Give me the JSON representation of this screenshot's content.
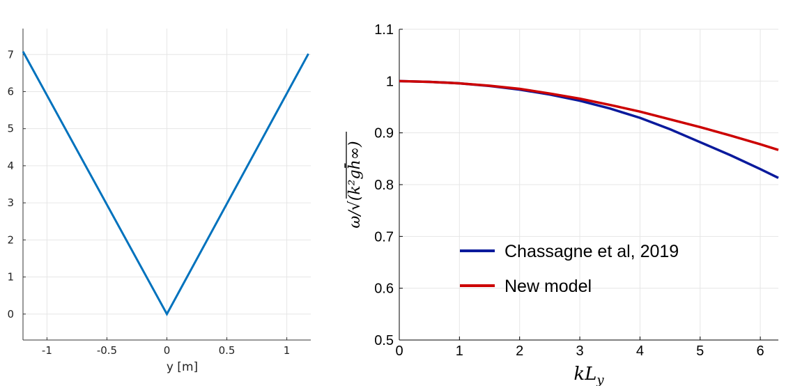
{
  "chart_data": [
    {
      "type": "line",
      "title": "",
      "xlabel": "y [m]",
      "ylabel": "",
      "xlim": [
        -1.2,
        1.2
      ],
      "ylim": [
        -0.7,
        7.7
      ],
      "xticks": [
        "-1",
        "-0.5",
        "0",
        "0.5",
        "1"
      ],
      "yticks": [
        "0",
        "1",
        "2",
        "3",
        "4",
        "5",
        "6",
        "7"
      ],
      "grid": true,
      "series": [
        {
          "x": [
            -1.2,
            0,
            1.18
          ],
          "y": [
            7.08,
            0,
            7.02
          ],
          "color": "#0072bd"
        }
      ]
    },
    {
      "type": "line",
      "title": "",
      "xlabel": "kL_y",
      "ylabel": "ω/√(k²gh̄∞)",
      "xlim": [
        0,
        6.3
      ],
      "ylim": [
        0.5,
        1.1
      ],
      "xticks": [
        "0",
        "1",
        "2",
        "3",
        "4",
        "5",
        "6"
      ],
      "yticks": [
        "0.5",
        "0.6",
        "0.7",
        "0.8",
        "0.9",
        "1",
        "1.1"
      ],
      "grid": true,
      "legend_position": "lower-left",
      "series": [
        {
          "name": "Chassagne et al, 2019",
          "color": "#0a1a9c",
          "x": [
            0,
            0.5,
            1,
            1.5,
            2,
            2.5,
            3,
            3.5,
            4,
            4.5,
            5,
            5.5,
            6,
            6.3
          ],
          "y": [
            1.0,
            0.9985,
            0.9955,
            0.9905,
            0.9835,
            0.974,
            0.962,
            0.947,
            0.929,
            0.907,
            0.882,
            0.857,
            0.83,
            0.813
          ]
        },
        {
          "name": "New model",
          "color": "#cc0000",
          "x": [
            0,
            0.5,
            1,
            1.5,
            2,
            2.5,
            3,
            3.5,
            4,
            4.5,
            5,
            5.5,
            6,
            6.3
          ],
          "y": [
            1.0,
            0.9985,
            0.9955,
            0.991,
            0.985,
            0.976,
            0.966,
            0.954,
            0.941,
            0.926,
            0.911,
            0.895,
            0.878,
            0.867
          ]
        }
      ]
    }
  ]
}
